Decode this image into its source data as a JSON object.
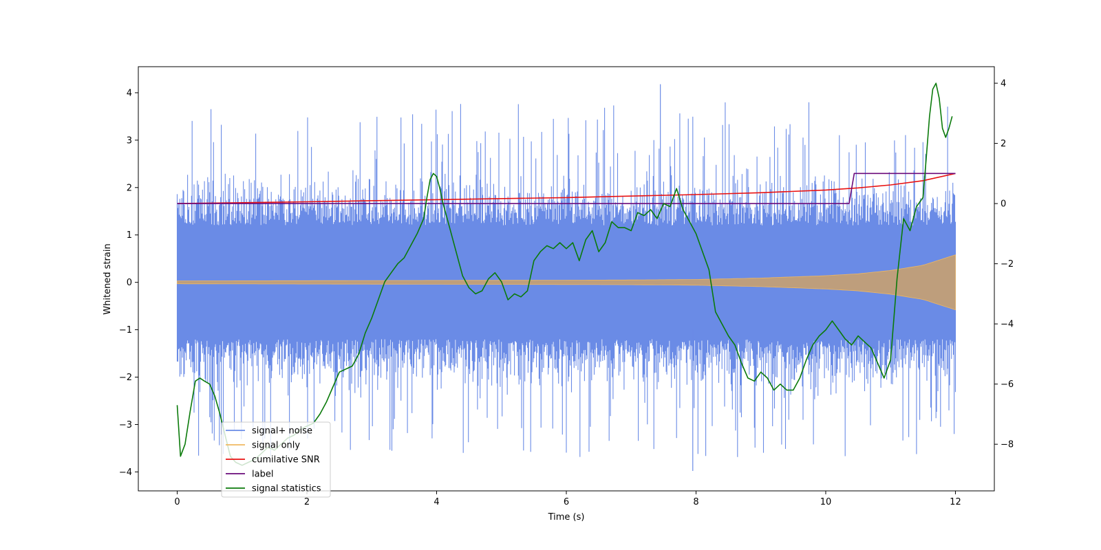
{
  "chart_data": {
    "type": "line",
    "xlabel": "Time (s)",
    "ylabel": "Whitened strain",
    "xlim": [
      -0.6,
      12.6
    ],
    "ylim_left": [
      -4.4,
      4.55
    ],
    "ylim_right": [
      -9.55,
      4.55
    ],
    "x_ticks": [
      0,
      2,
      4,
      6,
      8,
      10,
      12
    ],
    "y_ticks_left": [
      -4,
      -3,
      -2,
      -1,
      0,
      1,
      2,
      3,
      4
    ],
    "y_ticks_right": [
      -8,
      -6,
      -4,
      -2,
      0,
      2,
      4
    ],
    "x_tick_labels": [
      "0",
      "2",
      "4",
      "6",
      "8",
      "10",
      "12"
    ],
    "y_tick_labels_left": [
      "−4",
      "−3",
      "−2",
      "−1",
      "0",
      "1",
      "2",
      "3",
      "4"
    ],
    "y_tick_labels_right": [
      "−8",
      "−6",
      "−4",
      "−2",
      "0",
      "2",
      "4"
    ],
    "legend_position": "lower-left",
    "grid": false,
    "series": [
      {
        "name": "signal+ noise",
        "axis": "left",
        "color": "#6a8be6",
        "kind": "noise-band",
        "x_range": [
          0,
          12
        ],
        "typical_amplitude": 1.5,
        "max": 4.18,
        "min": -3.98
      },
      {
        "name": "signal only",
        "axis": "left",
        "color": "#f0b860",
        "kind": "chirp",
        "x_range": [
          0,
          12
        ],
        "envelope": {
          "x": [
            0,
            2,
            4,
            6,
            7,
            8,
            9,
            10,
            10.5,
            11,
            11.5,
            12
          ],
          "amplitude": [
            0.03,
            0.035,
            0.04,
            0.045,
            0.05,
            0.06,
            0.09,
            0.14,
            0.18,
            0.25,
            0.36,
            0.58
          ]
        }
      },
      {
        "name": "cumilative SNR",
        "axis": "right",
        "color": "#e81010",
        "x": [
          0,
          2,
          4,
          6,
          7,
          8,
          9,
          10,
          10.5,
          11,
          11.5,
          12
        ],
        "y": [
          0,
          0.06,
          0.13,
          0.2,
          0.25,
          0.3,
          0.36,
          0.45,
          0.52,
          0.62,
          0.76,
          1.0
        ]
      },
      {
        "name": "label",
        "axis": "right",
        "color": "#6a0a7a",
        "x": [
          0,
          10.36,
          10.44,
          12
        ],
        "y": [
          0,
          0,
          1,
          1
        ]
      },
      {
        "name": "signal statistics",
        "axis": "right",
        "color": "#0a7a0a",
        "x": [
          0,
          0.05,
          0.12,
          0.2,
          0.28,
          0.35,
          0.42,
          0.5,
          0.58,
          0.66,
          0.75,
          0.82,
          0.9,
          1.0,
          1.1,
          1.2,
          1.3,
          1.4,
          1.5,
          1.6,
          1.7,
          1.8,
          1.9,
          2.0,
          2.1,
          2.2,
          2.3,
          2.4,
          2.5,
          2.6,
          2.7,
          2.8,
          2.9,
          3.0,
          3.1,
          3.2,
          3.3,
          3.4,
          3.5,
          3.6,
          3.7,
          3.8,
          3.85,
          3.9,
          3.95,
          4.0,
          4.05,
          4.1,
          4.2,
          4.3,
          4.4,
          4.5,
          4.6,
          4.7,
          4.8,
          4.9,
          5.0,
          5.1,
          5.2,
          5.3,
          5.4,
          5.5,
          5.6,
          5.7,
          5.8,
          5.9,
          6.0,
          6.1,
          6.2,
          6.3,
          6.4,
          6.5,
          6.6,
          6.7,
          6.8,
          6.9,
          7.0,
          7.1,
          7.2,
          7.3,
          7.4,
          7.5,
          7.6,
          7.7,
          7.8,
          7.9,
          8.0,
          8.1,
          8.2,
          8.3,
          8.4,
          8.5,
          8.6,
          8.7,
          8.8,
          8.9,
          9.0,
          9.1,
          9.2,
          9.3,
          9.4,
          9.5,
          9.6,
          9.7,
          9.8,
          9.9,
          10.0,
          10.1,
          10.2,
          10.3,
          10.4,
          10.5,
          10.6,
          10.7,
          10.8,
          10.9,
          11.0,
          11.1,
          11.2,
          11.3,
          11.4,
          11.5,
          11.55,
          11.6,
          11.65,
          11.7,
          11.75,
          11.8,
          11.85,
          11.9,
          11.95
        ],
        "y": [
          -6.7,
          -8.4,
          -8.0,
          -6.9,
          -5.9,
          -5.8,
          -5.9,
          -6.0,
          -6.4,
          -7.0,
          -7.8,
          -8.4,
          -8.6,
          -8.7,
          -8.6,
          -8.5,
          -8.3,
          -8.1,
          -8.2,
          -8.0,
          -7.8,
          -7.7,
          -7.5,
          -7.4,
          -7.3,
          -7.0,
          -6.6,
          -6.1,
          -5.6,
          -5.5,
          -5.4,
          -5.0,
          -4.3,
          -3.8,
          -3.2,
          -2.6,
          -2.3,
          -2.0,
          -1.8,
          -1.4,
          -1.0,
          -0.5,
          0.2,
          0.8,
          1.0,
          0.9,
          0.5,
          0.0,
          -0.8,
          -1.6,
          -2.4,
          -2.8,
          -3.0,
          -2.9,
          -2.5,
          -2.3,
          -2.6,
          -3.2,
          -3.0,
          -3.1,
          -2.9,
          -1.9,
          -1.6,
          -1.4,
          -1.5,
          -1.3,
          -1.5,
          -1.3,
          -1.9,
          -1.2,
          -0.9,
          -1.6,
          -1.3,
          -0.6,
          -0.8,
          -0.8,
          -0.9,
          -0.3,
          -0.4,
          -0.2,
          -0.5,
          0.0,
          -0.1,
          0.5,
          -0.2,
          -0.6,
          -1.0,
          -1.6,
          -2.2,
          -3.6,
          -4.0,
          -4.4,
          -4.7,
          -5.3,
          -5.8,
          -5.9,
          -5.6,
          -5.8,
          -6.2,
          -6.0,
          -6.2,
          -6.2,
          -5.8,
          -5.2,
          -4.7,
          -4.4,
          -4.2,
          -3.9,
          -4.2,
          -4.5,
          -4.7,
          -4.4,
          -4.6,
          -4.8,
          -5.3,
          -5.8,
          -5.2,
          -2.5,
          -0.5,
          -0.9,
          -0.1,
          0.2,
          1.5,
          2.9,
          3.8,
          4.0,
          3.5,
          2.5,
          2.2,
          2.5,
          2.9
        ]
      }
    ]
  }
}
